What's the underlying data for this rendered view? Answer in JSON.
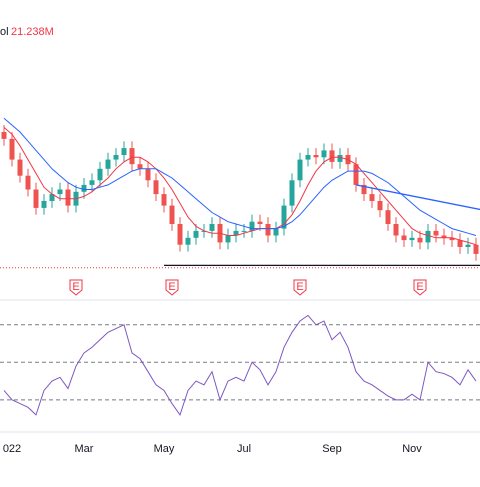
{
  "chart_data": {
    "type": "candlestick",
    "volume_label": "ol",
    "volume_value": "21.238M",
    "opens": [
      60,
      57,
      48,
      41,
      35,
      27,
      30,
      33,
      35,
      28,
      34,
      37,
      39,
      44,
      48,
      50,
      53,
      46,
      44,
      39,
      33,
      28,
      20,
      11,
      14,
      17,
      17,
      20,
      12,
      15,
      17,
      17,
      21,
      20,
      15,
      18,
      28,
      39,
      48,
      50,
      49,
      52,
      47,
      50,
      46,
      37,
      33,
      30,
      26,
      20,
      15,
      13,
      14,
      12,
      17,
      15,
      14,
      13,
      10,
      11
    ],
    "highs": [
      63,
      60,
      51,
      44,
      38,
      33,
      36,
      38,
      38,
      37,
      40,
      42,
      47,
      51,
      53,
      56,
      56,
      49,
      47,
      42,
      36,
      31,
      23,
      17,
      20,
      20,
      23,
      23,
      18,
      20,
      20,
      24,
      24,
      23,
      21,
      31,
      42,
      51,
      53,
      53,
      55,
      55,
      53,
      53,
      49,
      40,
      36,
      33,
      29,
      23,
      18,
      17,
      17,
      20,
      20,
      18,
      17,
      16,
      14,
      14
    ],
    "lows": [
      54,
      45,
      38,
      32,
      24,
      24,
      27,
      30,
      25,
      25,
      31,
      34,
      36,
      41,
      45,
      47,
      43,
      41,
      36,
      30,
      25,
      17,
      8,
      8,
      11,
      14,
      14,
      9,
      9,
      12,
      14,
      14,
      17,
      12,
      12,
      15,
      25,
      36,
      45,
      46,
      46,
      44,
      44,
      43,
      34,
      30,
      27,
      23,
      17,
      12,
      10,
      10,
      9,
      9,
      12,
      11,
      10,
      7,
      7,
      4
    ],
    "closes": [
      57,
      48,
      41,
      35,
      27,
      30,
      33,
      35,
      28,
      34,
      37,
      39,
      44,
      48,
      50,
      53,
      46,
      44,
      39,
      33,
      28,
      20,
      11,
      14,
      17,
      17,
      20,
      12,
      15,
      17,
      17,
      21,
      20,
      15,
      18,
      28,
      39,
      48,
      50,
      49,
      52,
      47,
      50,
      46,
      37,
      33,
      30,
      26,
      20,
      15,
      13,
      14,
      12,
      17,
      15,
      14,
      13,
      10,
      11,
      7
    ],
    "up_color": "#26a69a",
    "down_color": "#ef5350",
    "ylim": [
      0,
      100
    ],
    "overlays": [
      {
        "color": "#f23645",
        "values": [
          62,
          59,
          54,
          48,
          42,
          36,
          33,
          31,
          31,
          31,
          32,
          34,
          37,
          40,
          44,
          47,
          49,
          49,
          47,
          44,
          40,
          35,
          29,
          23,
          19,
          17,
          16,
          16,
          15,
          15,
          16,
          17,
          18,
          18,
          18,
          20,
          24,
          30,
          37,
          43,
          47,
          49,
          49,
          48,
          46,
          42,
          38,
          34,
          30,
          26,
          22,
          18,
          16,
          15,
          14,
          14,
          14,
          13,
          12,
          11
        ]
      },
      {
        "color": "#2962ff",
        "values": [
          66,
          63,
          60,
          56,
          52,
          48,
          44,
          41,
          38,
          36,
          35,
          35,
          36,
          37,
          39,
          41,
          43,
          44,
          44,
          44,
          42,
          40,
          37,
          34,
          31,
          28,
          25,
          23,
          21,
          20,
          19,
          18,
          18,
          18,
          18,
          19,
          21,
          24,
          28,
          32,
          36,
          39,
          41,
          43,
          43,
          43,
          42,
          40,
          38,
          35,
          32,
          29,
          26,
          24,
          22,
          20,
          18,
          17,
          16,
          15
        ]
      }
    ],
    "trendlines": [
      {
        "color": "#2962ff",
        "from": [
          44,
          37
        ],
        "to": [
          60,
          26
        ]
      },
      {
        "color": "#131722",
        "from": [
          20,
          2
        ],
        "to": [
          60,
          2
        ]
      }
    ],
    "price_line": {
      "value": 1,
      "color": "#f23645"
    },
    "events": [
      {
        "index": 9,
        "label": "E"
      },
      {
        "index": 21,
        "label": "E"
      },
      {
        "index": 37,
        "label": "E"
      },
      {
        "index": 52,
        "label": "E"
      }
    ],
    "xticks": [
      {
        "index": 0,
        "label": "022"
      },
      {
        "index": 10,
        "label": "Mar"
      },
      {
        "index": 20,
        "label": "May"
      },
      {
        "index": 30,
        "label": "Jul"
      },
      {
        "index": 41,
        "label": "Sep"
      },
      {
        "index": 51,
        "label": "Nov"
      }
    ],
    "rsi": {
      "color": "#7e57c2",
      "ylim": [
        15,
        80
      ],
      "levels": [
        70,
        50,
        30
      ],
      "values": [
        35,
        30,
        28,
        26,
        22,
        35,
        40,
        42,
        36,
        48,
        55,
        58,
        62,
        66,
        68,
        70,
        55,
        52,
        45,
        38,
        35,
        28,
        22,
        35,
        40,
        38,
        45,
        30,
        40,
        42,
        40,
        50,
        46,
        38,
        45,
        58,
        66,
        72,
        75,
        70,
        72,
        62,
        66,
        58,
        45,
        40,
        38,
        35,
        32,
        30,
        30,
        33,
        30,
        50,
        45,
        44,
        42,
        38,
        46,
        40
      ]
    }
  }
}
